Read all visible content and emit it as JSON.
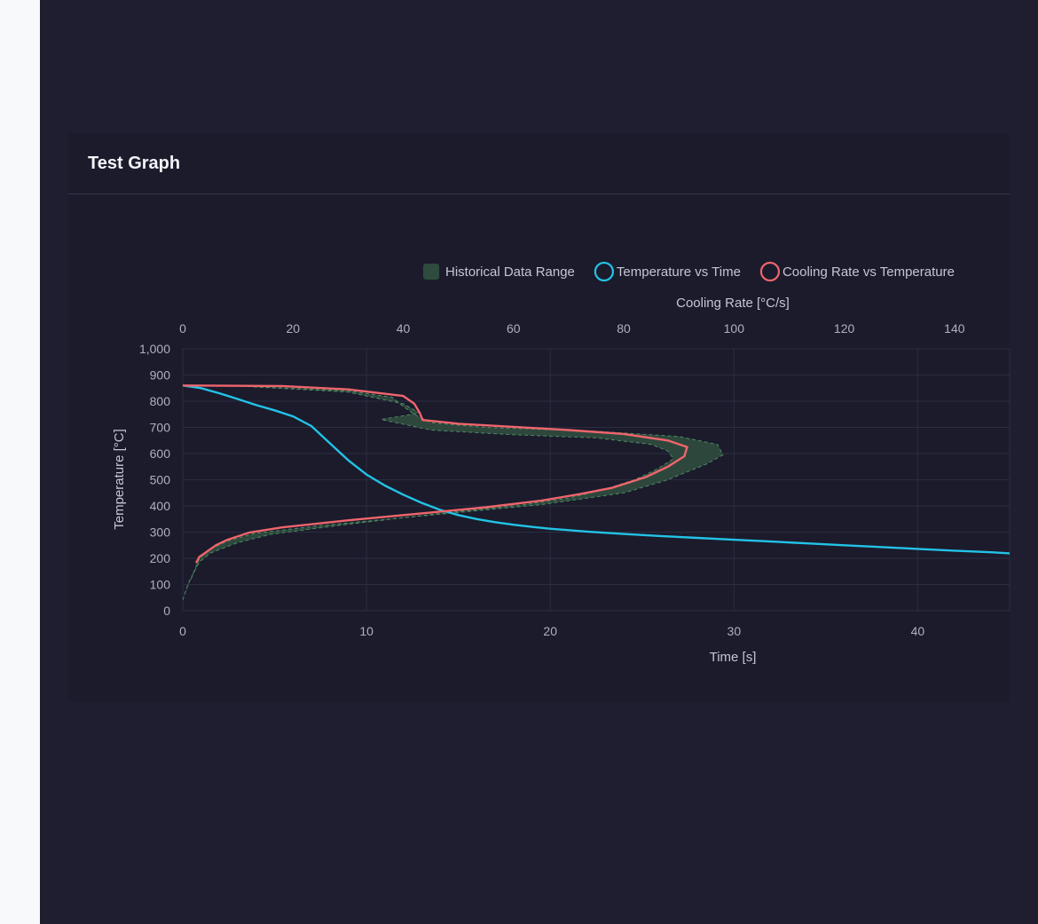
{
  "card": {
    "title": "Test Graph"
  },
  "chart_data": {
    "type": "line",
    "legend_position": "top-right",
    "grid": true,
    "legend": [
      {
        "label": "Historical Data Range",
        "color": "#2f4a3e",
        "shape": "square"
      },
      {
        "label": "Temperature vs Time",
        "color": "#22c3e6",
        "shape": "circle"
      },
      {
        "label": "Cooling Rate vs Temperature",
        "color": "#f0656c",
        "shape": "circle"
      }
    ],
    "axes": {
      "x_bottom": {
        "label": "Time [s]",
        "range": [
          0,
          45
        ],
        "ticks": [
          "0",
          "10",
          "20",
          "30",
          "40"
        ]
      },
      "x_top": {
        "label": "Cooling Rate [°C/s]",
        "range": [
          0,
          150
        ],
        "ticks": [
          "0",
          "20",
          "40",
          "60",
          "80",
          "100",
          "120",
          "140"
        ]
      },
      "y_left": {
        "label": "Temperature [°C]",
        "range": [
          0,
          1000
        ],
        "ticks": [
          "0",
          "100",
          "200",
          "300",
          "400",
          "500",
          "600",
          "700",
          "800",
          "900",
          "1,000"
        ]
      }
    },
    "series": [
      {
        "name": "Temperature vs Time",
        "color": "#22c3e6",
        "x_axis": "bottom",
        "points": [
          [
            0,
            860
          ],
          [
            1,
            850
          ],
          [
            2,
            830
          ],
          [
            3,
            808
          ],
          [
            4,
            785
          ],
          [
            5,
            765
          ],
          [
            6,
            742
          ],
          [
            7,
            705
          ],
          [
            8,
            640
          ],
          [
            9,
            575
          ],
          [
            10,
            520
          ],
          [
            11,
            478
          ],
          [
            12,
            443
          ],
          [
            13,
            412
          ],
          [
            14,
            385
          ],
          [
            15,
            365
          ],
          [
            16,
            350
          ],
          [
            17,
            338
          ],
          [
            18,
            328
          ],
          [
            19,
            320
          ],
          [
            20,
            313
          ],
          [
            22,
            302
          ],
          [
            24,
            293
          ],
          [
            26,
            285
          ],
          [
            28,
            278
          ],
          [
            30,
            271
          ],
          [
            32,
            264
          ],
          [
            34,
            257
          ],
          [
            36,
            250
          ],
          [
            38,
            243
          ],
          [
            40,
            236
          ],
          [
            42,
            229
          ],
          [
            44,
            223
          ],
          [
            45,
            219
          ]
        ]
      },
      {
        "name": "Cooling Rate vs Temperature",
        "color": "#f0656c",
        "x_axis": "top",
        "points": [
          [
            2.5,
            185
          ],
          [
            3,
            205
          ],
          [
            4,
            220
          ],
          [
            5,
            235
          ],
          [
            6,
            250
          ],
          [
            8,
            270
          ],
          [
            12,
            298
          ],
          [
            18,
            318
          ],
          [
            30,
            345
          ],
          [
            45,
            375
          ],
          [
            55,
            395
          ],
          [
            65,
            420
          ],
          [
            72,
            445
          ],
          [
            78,
            470
          ],
          [
            84,
            510
          ],
          [
            88,
            550
          ],
          [
            91,
            590
          ],
          [
            91.5,
            625
          ],
          [
            88,
            650
          ],
          [
            80,
            675
          ],
          [
            70,
            690
          ],
          [
            60,
            702
          ],
          [
            50,
            714
          ],
          [
            43.5,
            728
          ],
          [
            43,
            755
          ],
          [
            42,
            790
          ],
          [
            40,
            820
          ],
          [
            30,
            845
          ],
          [
            18,
            858
          ],
          [
            0,
            860
          ]
        ]
      }
    ],
    "range_band": {
      "name": "Historical Data Range",
      "color": "#2f4a3e",
      "x_axis": "top",
      "upper": [
        [
          1.5,
          120
        ],
        [
          3,
          200
        ],
        [
          5,
          235
        ],
        [
          8,
          265
        ],
        [
          13,
          295
        ],
        [
          25,
          325
        ],
        [
          45,
          365
        ],
        [
          65,
          405
        ],
        [
          80,
          450
        ],
        [
          88,
          500
        ],
        [
          95,
          560
        ],
        [
          98,
          595
        ],
        [
          97,
          635
        ],
        [
          90,
          665
        ],
        [
          75,
          685
        ],
        [
          55,
          700
        ],
        [
          45,
          718
        ],
        [
          42,
          750
        ],
        [
          40,
          780
        ],
        [
          38,
          815
        ],
        [
          30,
          840
        ],
        [
          10,
          858
        ]
      ],
      "lower": [
        [
          0,
          40
        ],
        [
          1,
          105
        ],
        [
          3,
          185
        ],
        [
          5,
          220
        ],
        [
          10,
          260
        ],
        [
          16,
          292
        ],
        [
          30,
          330
        ],
        [
          46,
          370
        ],
        [
          62,
          405
        ],
        [
          70,
          430
        ],
        [
          76,
          460
        ],
        [
          82,
          500
        ],
        [
          86,
          540
        ],
        [
          89,
          580
        ],
        [
          88,
          610
        ],
        [
          85,
          635
        ],
        [
          75,
          660
        ],
        [
          60,
          672
        ],
        [
          45,
          690
        ],
        [
          36,
          730
        ],
        [
          43,
          755
        ],
        [
          40,
          790
        ],
        [
          30,
          835
        ],
        [
          10,
          858
        ]
      ]
    }
  }
}
